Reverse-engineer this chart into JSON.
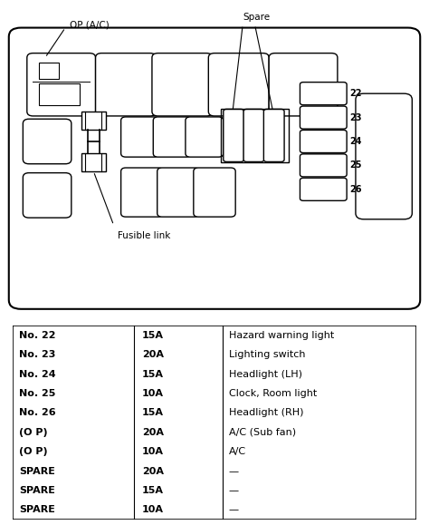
{
  "diagram_label_op_ac": "OP (A/C)",
  "diagram_label_spare": "Spare",
  "diagram_label_fusible": "Fusible link",
  "fuse_numbers": [
    "22",
    "23",
    "24",
    "25",
    "26"
  ],
  "table_rows": [
    {
      "label": "No. 22",
      "amps": "15A",
      "description": "Hazard warning light"
    },
    {
      "label": "No. 23",
      "amps": "20A",
      "description": "Lighting switch"
    },
    {
      "label": "No. 24",
      "amps": "15A",
      "description": "Headlight (LH)"
    },
    {
      "label": "No. 25",
      "amps": "10A",
      "description": "Clock, Room light"
    },
    {
      "label": "No. 26",
      "amps": "15A",
      "description": "Headlight (RH)"
    },
    {
      "label": "(O P)",
      "amps": "20A",
      "description": "A/C (Sub fan)"
    },
    {
      "label": "(O P)",
      "amps": "10A",
      "description": "A/C"
    },
    {
      "label": "SPARE",
      "amps": "20A",
      "description": "—"
    },
    {
      "label": "SPARE",
      "amps": "15A",
      "description": "—"
    },
    {
      "label": "SPARE",
      "amps": "10A",
      "description": "—"
    }
  ],
  "bg_color": "#ffffff",
  "ec": "#000000"
}
